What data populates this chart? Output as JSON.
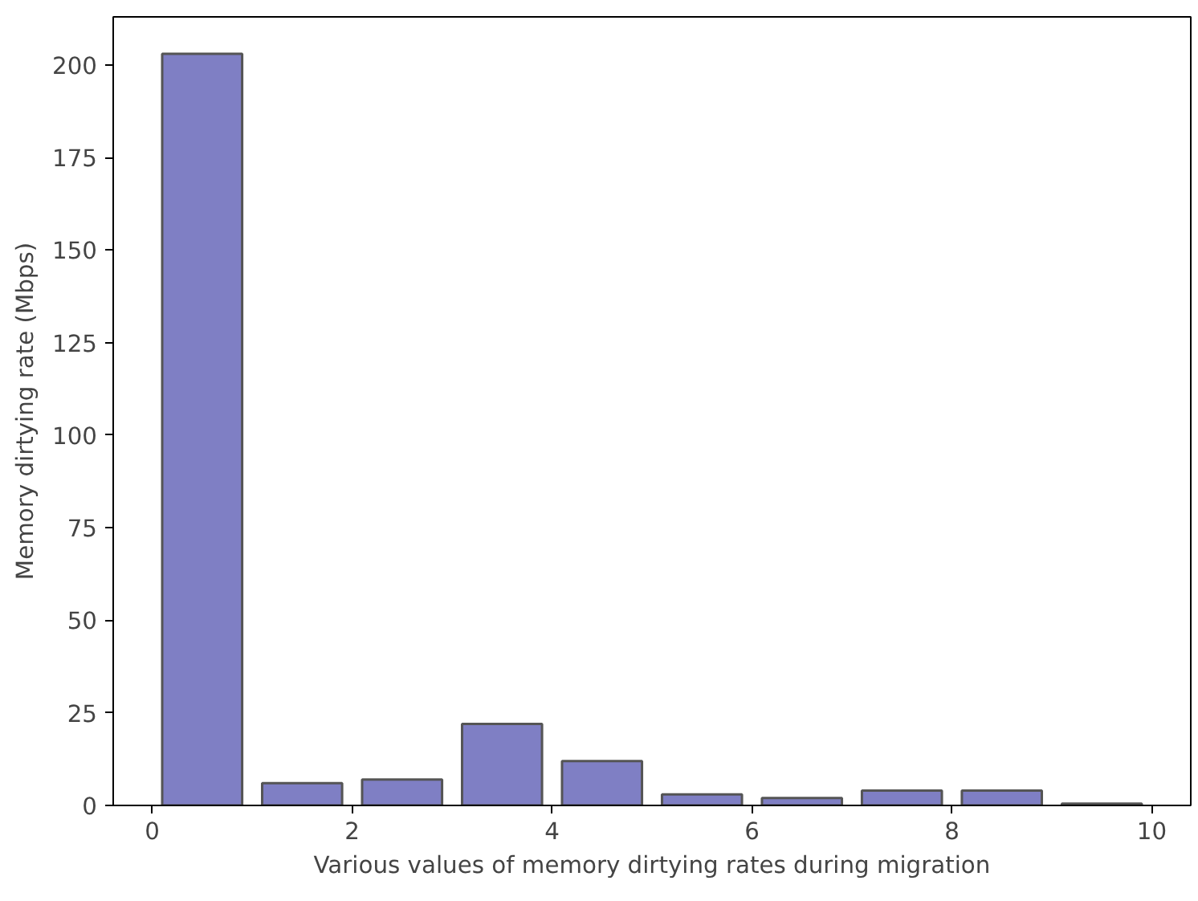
{
  "chart_data": {
    "type": "histogram",
    "xlabel": "Various values of memory dirtying rates during migration",
    "ylabel": "Memory dirtying rate (Mbps)",
    "bins": [
      0,
      1,
      2,
      3,
      4,
      5,
      6,
      7,
      8,
      9,
      10
    ],
    "values": [
      203,
      6,
      7,
      22,
      12,
      3,
      2,
      4,
      4,
      0.5
    ],
    "color": "#7f7fc4",
    "xlim": [
      -0.39,
      10.39
    ],
    "ylim": [
      0,
      213
    ],
    "xticks": [
      0,
      2,
      4,
      6,
      8,
      10
    ],
    "yticks": [
      0,
      25,
      50,
      75,
      100,
      125,
      150,
      175,
      200
    ],
    "grid": false
  }
}
